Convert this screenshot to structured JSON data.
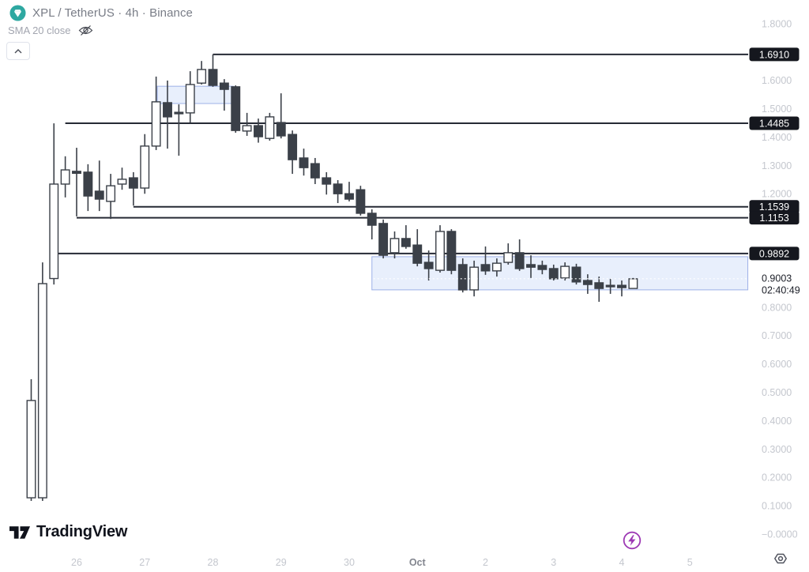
{
  "header": {
    "symbol_title": "XPL / TetherUS · 4h · Binance",
    "indicator_label": "SMA 20 close"
  },
  "footer": {
    "logo_text": "TradingView"
  },
  "colors": {
    "symbol_logo_teal": "#2ea8a1",
    "candle": "#3b4048",
    "candle_up_fill": "#ffffff",
    "ray_line": "#262a35",
    "zone_fill": "rgba(185,205,245,0.32)",
    "zone_border": "rgba(110,140,220,0.65)",
    "chip_bg": "#15171e",
    "chip_text": "#ffffff",
    "axis_text": "#c4c7ce",
    "axis_text_strong": "#83868f",
    "last_price_text": "#1b1e27",
    "flash_purple": "#9d39b4"
  },
  "chart_data": {
    "type": "candlestick",
    "title": "XPL / TetherUS · 4h · Binance",
    "grid": false,
    "ylim": [
      -0.134,
      1.883
    ],
    "candles_ohlc": [
      [
        0.128,
        0.546,
        0.117,
        0.471
      ],
      [
        0.128,
        0.958,
        0.117,
        0.883
      ],
      [
        0.901,
        1.448,
        0.88,
        1.234
      ],
      [
        1.234,
        1.332,
        1.187,
        1.284
      ],
      [
        1.279,
        1.362,
        1.12,
        1.272
      ],
      [
        1.276,
        1.304,
        1.139,
        1.192
      ],
      [
        1.209,
        1.317,
        1.139,
        1.181
      ],
      [
        1.173,
        1.27,
        1.111,
        1.228
      ],
      [
        1.234,
        1.292,
        1.214,
        1.251
      ],
      [
        1.256,
        1.276,
        1.158,
        1.22
      ],
      [
        1.22,
        1.41,
        1.2,
        1.368
      ],
      [
        1.368,
        1.613,
        1.354,
        1.524
      ],
      [
        1.521,
        1.599,
        1.359,
        1.471
      ],
      [
        1.487,
        1.515,
        1.334,
        1.482
      ],
      [
        1.485,
        1.632,
        1.451,
        1.585
      ],
      [
        1.59,
        1.668,
        1.585,
        1.638
      ],
      [
        1.638,
        1.691,
        1.577,
        1.582
      ],
      [
        1.59,
        1.604,
        1.493,
        1.568
      ],
      [
        1.577,
        1.582,
        1.415,
        1.423
      ],
      [
        1.421,
        1.485,
        1.404,
        1.44
      ],
      [
        1.44,
        1.465,
        1.38,
        1.401
      ],
      [
        1.395,
        1.485,
        1.387,
        1.471
      ],
      [
        1.451,
        1.554,
        1.395,
        1.404
      ],
      [
        1.409,
        1.423,
        1.27,
        1.32
      ],
      [
        1.326,
        1.359,
        1.264,
        1.292
      ],
      [
        1.306,
        1.326,
        1.234,
        1.256
      ],
      [
        1.256,
        1.276,
        1.197,
        1.234
      ],
      [
        1.234,
        1.248,
        1.167,
        1.2
      ],
      [
        1.2,
        1.242,
        1.173,
        1.181
      ],
      [
        1.214,
        1.228,
        1.123,
        1.131
      ],
      [
        1.131,
        1.145,
        1.039,
        1.089
      ],
      [
        1.095,
        1.109,
        0.972,
        0.983
      ],
      [
        0.992,
        1.067,
        0.972,
        1.042
      ],
      [
        1.042,
        1.089,
        1.006,
        1.014
      ],
      [
        1.019,
        1.075,
        0.944,
        0.955
      ],
      [
        0.958,
        1.0,
        0.894,
        0.936
      ],
      [
        0.93,
        1.089,
        0.922,
        1.067
      ],
      [
        1.067,
        1.075,
        0.916,
        0.93
      ],
      [
        0.95,
        0.972,
        0.852,
        0.861
      ],
      [
        0.861,
        0.964,
        0.838,
        0.941
      ],
      [
        0.95,
        1.014,
        0.914,
        0.928
      ],
      [
        0.928,
        0.972,
        0.908,
        0.955
      ],
      [
        0.958,
        1.025,
        0.95,
        0.992
      ],
      [
        0.992,
        1.039,
        0.928,
        0.936
      ],
      [
        0.95,
        0.983,
        0.903,
        0.941
      ],
      [
        0.947,
        0.964,
        0.916,
        0.933
      ],
      [
        0.936,
        0.95,
        0.894,
        0.9
      ],
      [
        0.903,
        0.958,
        0.894,
        0.944
      ],
      [
        0.941,
        0.953,
        0.88,
        0.889
      ],
      [
        0.894,
        0.916,
        0.847,
        0.88
      ],
      [
        0.886,
        0.908,
        0.819,
        0.866
      ],
      [
        0.877,
        0.9,
        0.847,
        0.872
      ],
      [
        0.877,
        0.894,
        0.838,
        0.869
      ],
      [
        0.866,
        0.903,
        0.866,
        0.9
      ]
    ],
    "price_axis_ticks": [
      {
        "label": "1.8000",
        "price": 1.8
      },
      {
        "label": "1.6000",
        "price": 1.6
      },
      {
        "label": "1.5000",
        "price": 1.5
      },
      {
        "label": "1.4000",
        "price": 1.4
      },
      {
        "label": "1.3000",
        "price": 1.3
      },
      {
        "label": "1.2000",
        "price": 1.2
      },
      {
        "label": "0.8000",
        "price": 0.8
      },
      {
        "label": "0.7000",
        "price": 0.7
      },
      {
        "label": "0.6000",
        "price": 0.6
      },
      {
        "label": "0.5000",
        "price": 0.5
      },
      {
        "label": "0.4000",
        "price": 0.4
      },
      {
        "label": "0.3000",
        "price": 0.3
      },
      {
        "label": "0.2000",
        "price": 0.2
      },
      {
        "label": "0.1000",
        "price": 0.1
      },
      {
        "label": "−0.0000",
        "price": 0.0
      }
    ],
    "time_axis_ticks": [
      {
        "label": "26",
        "index": 4,
        "major": false
      },
      {
        "label": "27",
        "index": 10,
        "major": false
      },
      {
        "label": "28",
        "index": 16,
        "major": false
      },
      {
        "label": "29",
        "index": 22,
        "major": false
      },
      {
        "label": "30",
        "index": 28,
        "major": false
      },
      {
        "label": "Oct",
        "index": 34,
        "major": true
      },
      {
        "label": "2",
        "index": 40,
        "major": false
      },
      {
        "label": "3",
        "index": 46,
        "major": false
      },
      {
        "label": "4",
        "index": 52,
        "major": false
      },
      {
        "label": "5",
        "index": 58,
        "major": false
      }
    ],
    "horizontal_rays": [
      {
        "label": "1.6910",
        "price": 1.691,
        "start_index": 16
      },
      {
        "label": "1.4485",
        "price": 1.4485,
        "start_index": 3
      },
      {
        "label": "1.1539",
        "price": 1.1539,
        "start_index": 9
      },
      {
        "label": "1.1153",
        "price": 1.1153,
        "start_index": 4
      },
      {
        "label": "0.9892",
        "price": 0.9892,
        "start_index": 2
      }
    ],
    "zones": [
      {
        "name": "supply-zone",
        "from_index": 11.1,
        "to_index": 17.8,
        "top": 1.579,
        "bottom": 1.518
      },
      {
        "name": "demand-zone",
        "from_index": 30.0,
        "to_index": 63.1,
        "top": 0.978,
        "bottom": 0.861
      }
    ],
    "last_price": {
      "label": "0.9003",
      "price": 0.9003,
      "countdown": "02:40:49"
    }
  }
}
